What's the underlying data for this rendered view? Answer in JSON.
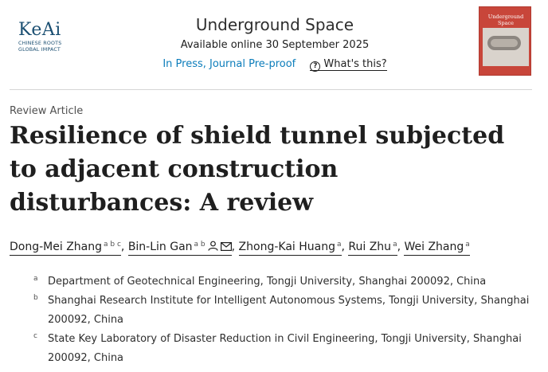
{
  "publisher": {
    "logo_text": "KeAi",
    "tagline": [
      "CHINESE ROOTS",
      "GLOBAL IMPACT"
    ]
  },
  "journal": {
    "name": "Underground Space",
    "available_online": "Available online 30 September 2025",
    "status": "In Press, Journal Pre-proof",
    "whats_this": "What's this?"
  },
  "cover": {
    "title": "Underground Space"
  },
  "article": {
    "type": "Review Article",
    "title": "Resilience of shield tunnel subjected to adjacent construction disturbances: A review"
  },
  "authors": [
    {
      "name": "Dong-Mei Zhang",
      "affils": "a b c",
      "corresponding": false
    },
    {
      "name": "Bin-Lin Gan",
      "affils": "a b",
      "corresponding": true
    },
    {
      "name": "Zhong-Kai Huang",
      "affils": "a",
      "corresponding": false
    },
    {
      "name": "Rui Zhu",
      "affils": "a",
      "corresponding": false
    },
    {
      "name": "Wei Zhang",
      "affils": "a",
      "corresponding": false
    }
  ],
  "affiliations": [
    {
      "label": "a",
      "text": "Department of Geotechnical Engineering, Tongji University, Shanghai 200092, China"
    },
    {
      "label": "b",
      "text": "Shanghai Research Institute for Intelligent Autonomous Systems, Tongji University, Shanghai 200092, China"
    },
    {
      "label": "c",
      "text": "State Key Laboratory of Disaster Reduction in Civil Engineering, Tongji University, Shanghai 200092, China"
    }
  ],
  "colors": {
    "link": "#0c7dbb",
    "logo": "#1b4f72",
    "cover": "#c8463a"
  }
}
